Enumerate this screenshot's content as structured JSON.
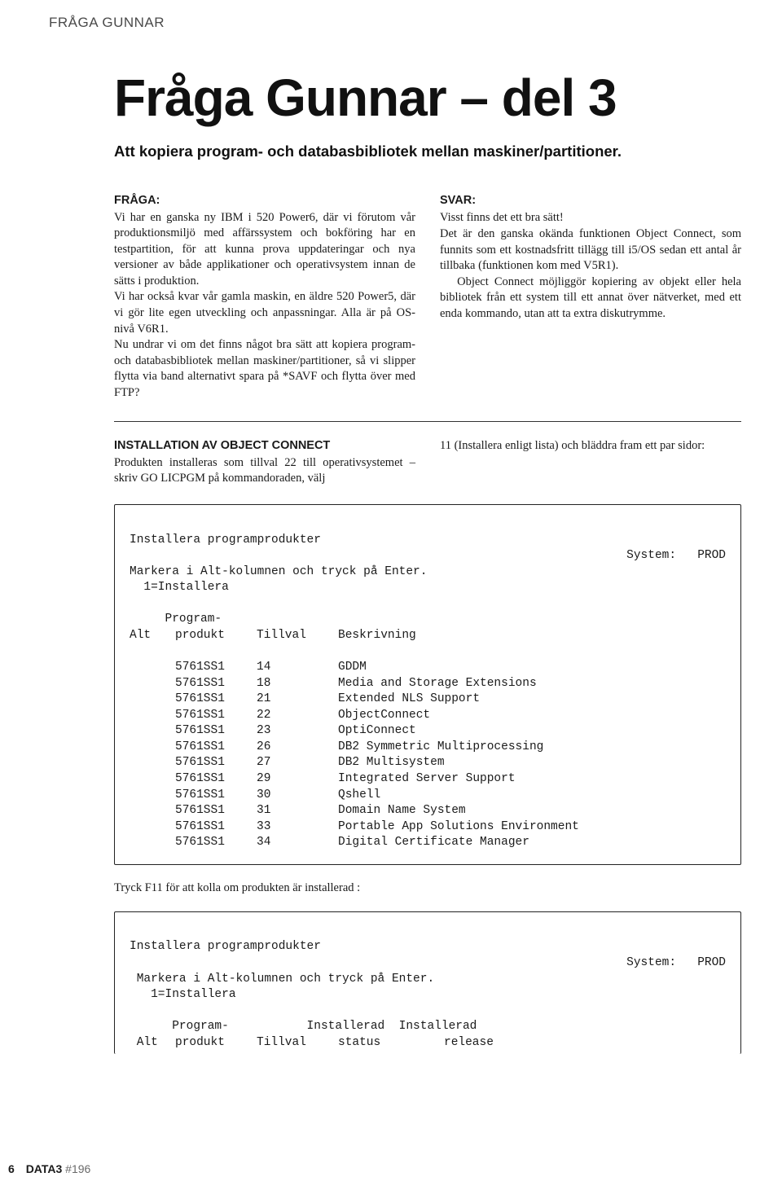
{
  "kicker": "FRÅGA GUNNAR",
  "title": "Fråga Gunnar – del 3",
  "subtitle": "Att kopiera program- och databasbibliotek mellan maskiner/partitioner.",
  "fragaLabel": "FRÅGA:",
  "fragaBody": "Vi har en ganska ny IBM i 520 Power6, där vi förutom vår produktionsmiljö med affärssystem och bokföring har en testpartition, för att kunna prova uppdateringar och nya versioner av både applikationer och operativsystem innan de sätts i produktion.\nVi har också kvar vår gamla maskin, en äldre 520 Power5, där vi gör lite egen utveckling och anpassningar. Alla är på OS-nivå V6R1.\nNu undrar vi om det finns något bra sätt att kopiera program- och databasbibliotek mellan maskiner/partitioner, så vi slipper flytta via band alternativt spara på *SAVF och flytta över med FTP?",
  "svarLabel": "SVAR:",
  "svarLine1": "Visst finns det ett bra sätt!",
  "svarBody": "Det är den ganska okända funktionen Object Connect, som funnits som ett kostnadsfritt tillägg till i5/OS sedan ett antal år tillbaka (funktionen kom med V5R1).\n   Object Connect möjliggör kopiering av objekt eller hela bibliotek från ett system till ett annat över nätverket, med ett enda kommando, utan att ta extra diskutrymme.",
  "installTitle": "INSTALLATION AV OBJECT CONNECT",
  "installBody": "Produkten installeras som tillval 22 till operativsystemet – skriv GO LICPGM på kommandoraden, välj",
  "installRight": "11 (Installera enligt lista) och bläddra fram ett par sidor:",
  "term1": {
    "title": "Installera programprodukter",
    "systemLabel": "System:",
    "systemValue": "PROD",
    "line2": "Markera i Alt-kolumnen och tryck på Enter.",
    "line3": "  1=Installera",
    "hdr1a": "     Program-",
    "colAlt": "Alt",
    "colProd": "produkt",
    "colTillval": "Tillval",
    "colBeskr": "Beskrivning",
    "rows": [
      {
        "prod": "5761SS1",
        "opt": "14",
        "desc": "GDDM"
      },
      {
        "prod": "5761SS1",
        "opt": "18",
        "desc": "Media and Storage Extensions"
      },
      {
        "prod": "5761SS1",
        "opt": "21",
        "desc": "Extended NLS Support"
      },
      {
        "prod": "5761SS1",
        "opt": "22",
        "desc": "ObjectConnect"
      },
      {
        "prod": "5761SS1",
        "opt": "23",
        "desc": "OptiConnect"
      },
      {
        "prod": "5761SS1",
        "opt": "26",
        "desc": "DB2 Symmetric Multiprocessing"
      },
      {
        "prod": "5761SS1",
        "opt": "27",
        "desc": "DB2 Multisystem"
      },
      {
        "prod": "5761SS1",
        "opt": "29",
        "desc": "Integrated Server Support"
      },
      {
        "prod": "5761SS1",
        "opt": "30",
        "desc": "Qshell"
      },
      {
        "prod": "5761SS1",
        "opt": "31",
        "desc": "Domain Name System"
      },
      {
        "prod": "5761SS1",
        "opt": "33",
        "desc": "Portable App Solutions Environment"
      },
      {
        "prod": "5761SS1",
        "opt": "34",
        "desc": "Digital Certificate Manager"
      }
    ]
  },
  "midLine": "Tryck F11 för att kolla om produkten är installerad :",
  "term2": {
    "title": "Installera programprodukter",
    "systemLabel": "System:",
    "systemValue": "PROD",
    "line2": " Markera i Alt-kolumnen och tryck på Enter.",
    "line3": "   1=Installera",
    "hdrTop": "      Program-           Installerad  Installerad",
    "colAlt": " Alt",
    "colProd": "produkt",
    "colTillval": "Tillval",
    "colStatus": "status",
    "colRelease": "release"
  },
  "footer": {
    "pagenum": "6",
    "mag": "DATA3",
    "issue": " #196"
  }
}
